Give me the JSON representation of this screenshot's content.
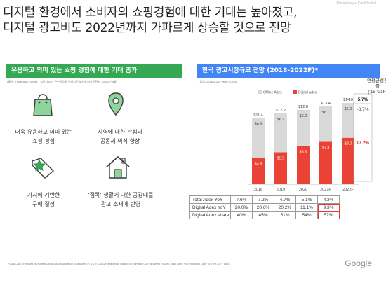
{
  "confidential_label": "Proprietary + Confidential",
  "headline": {
    "line1": "디지털 환경에서 소비자의 쇼핑경험에 대한 기대는 높아졌고,",
    "line2": "디지털 광고비도 2022년까지 가파르게 상승할 것으로 전망"
  },
  "left_panel": {
    "title": "유용하고 의미 있는 쇼핑 경험에 대한 기대 증가",
    "source": "(출처: 'Think with Google - 코로나19가 근본적으로 변화시킨 4가지 소비 트렌드', 2021년 4월)",
    "features": [
      {
        "icon": "shopping-bag-icon",
        "line1": "더욱 유용하고 의미 있는",
        "line2": "쇼핑 경험"
      },
      {
        "icon": "map-pin-icon",
        "line1": "지역에 대한 관심과",
        "line2": "공동체 의식 향상"
      },
      {
        "icon": "value-tag-star-icon",
        "line1": "가치에 기반한",
        "line2": "구매 결정"
      },
      {
        "icon": "house-icon",
        "line1": "'집콕' 생활에 대한 공감대를",
        "line2": "광고 소재에 반영"
      }
    ]
  },
  "right_panel": {
    "title": "한국 광고시장규모 전망 (2018-2022F)*",
    "source": "(출처: 2018-2022F from KODA)",
    "cagr_title_line1": "연평균성장률",
    "cagr_title_line2": "('18-'21F)"
  },
  "chart_data": {
    "type": "bar",
    "stacked": true,
    "categories": [
      "2018",
      "2019",
      "2020",
      "2021F",
      "2022F"
    ],
    "series": [
      {
        "name": "Digital Adex",
        "values": [
          4.5,
          5.5,
          6.6,
          7.3,
          8.0
        ],
        "labels": [
          "$4.5",
          "$5.5",
          "$6.6",
          "$7.3",
          "$8.0"
        ],
        "color": "#ea4335"
      },
      {
        "name": "Offline Adex",
        "values": [
          6.9,
          6.7,
          6.2,
          6.1,
          6.0
        ],
        "labels": [
          "$6.9",
          "$6.7",
          "$6.2",
          "$6.1",
          "$6.0"
        ],
        "color": "#d9d9d9"
      }
    ],
    "totals": [
      "$11.4",
      "$12.2",
      "$12.8",
      "$13.4",
      "$14.0"
    ],
    "total_values": [
      11.4,
      12.2,
      12.8,
      13.4,
      14.0
    ],
    "ylim": [
      0,
      14.0
    ],
    "legend": "top",
    "cagr": {
      "total": "5.7%",
      "offline": "-3.7%",
      "digital": "17.2%"
    }
  },
  "table": {
    "rows": [
      {
        "label": "Total Adex YoY",
        "values": [
          "7.6%",
          "7.2%",
          "4.7%",
          "5.1%",
          "4.3%"
        ]
      },
      {
        "label": "Digital Adex YoY",
        "values": [
          "20.0%",
          "20.6%",
          "20.2%",
          "11.1%",
          "9.3%"
        ]
      },
      {
        "label": "Digital Adex share",
        "values": [
          "40%",
          "45%",
          "51%",
          "54%",
          "57%"
        ]
      }
    ]
  },
  "footnote": "*2018-2021F based on Korea Digital Ad Association (published in '21.7); 2022F adex fcst. based on nominal GDP growth (+4.1%), total adex % of nominal GDP (0.79%, L2Y avg.)",
  "brand": "Google",
  "colors": {
    "green": "#34a853",
    "blue": "#4285f4",
    "red": "#ea4335",
    "grey": "#d9d9d9"
  }
}
